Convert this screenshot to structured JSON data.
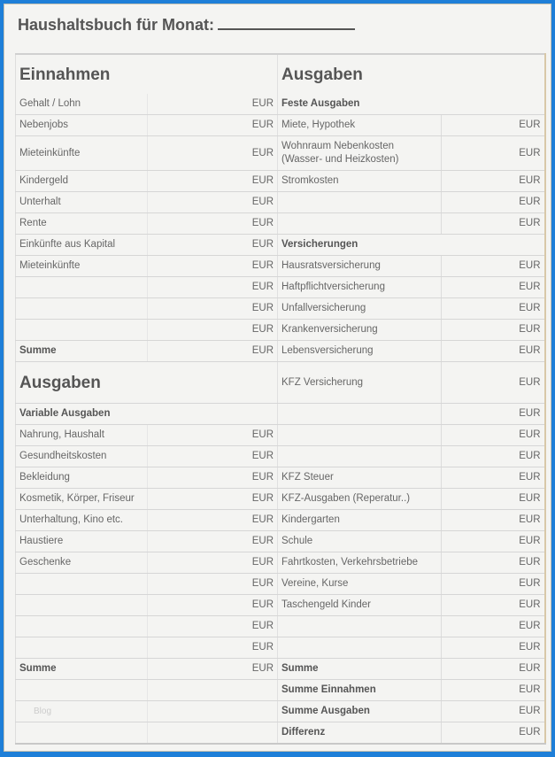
{
  "title": "Haushaltsbuch für Monat:",
  "currency": "EUR",
  "rows": [
    {
      "left": "Einnahmen",
      "left_style": "h",
      "left_eur": false,
      "right": "Ausgaben",
      "right_style": "h",
      "right_eur": false,
      "tall": 45,
      "heading": true
    },
    {
      "left": "Gehalt / Lohn",
      "left_eur": true,
      "right": "Feste Ausgaben",
      "right_style": "b",
      "right_eur": false,
      "right_span": true
    },
    {
      "left": "Nebenjobs",
      "left_eur": true,
      "right": "Miete, Hypothek",
      "right_eur": true
    },
    {
      "left": "Mieteinkünfte",
      "left_eur": true,
      "right": "Wohnraum Nebenkosten (Wasser- und Heizkosten)",
      "right_eur": true,
      "tall": 39
    },
    {
      "left": "Kindergeld",
      "left_eur": true,
      "right": "Stromkosten",
      "right_eur": true
    },
    {
      "left": "Unterhalt",
      "left_eur": true,
      "right": "",
      "right_eur": true
    },
    {
      "left": "Rente",
      "left_eur": true,
      "right": "",
      "right_eur": true
    },
    {
      "left": "Einkünfte aus Kapital",
      "left_eur": true,
      "right": "Versicherungen",
      "right_style": "b",
      "right_eur": false,
      "right_span": true
    },
    {
      "left": "Mieteinkünfte",
      "left_eur": true,
      "right": "Hausratsversicherung",
      "right_eur": true
    },
    {
      "left": "",
      "left_eur": true,
      "right": "Haftpflichtversicherung",
      "right_eur": true
    },
    {
      "left": "",
      "left_eur": true,
      "right": "Unfallversicherung",
      "right_eur": true
    },
    {
      "left": "",
      "left_eur": true,
      "right": "Krankenversicherung",
      "right_eur": true
    },
    {
      "left": "Summe",
      "left_style": "b",
      "left_eur": true,
      "right": "Lebensversicherung",
      "right_eur": true
    },
    {
      "left": "Ausgaben",
      "left_style": "h",
      "left_eur": false,
      "left_span": true,
      "right": "KFZ Versicherung",
      "right_eur": true,
      "tall": 47
    },
    {
      "left": "Variable Ausgaben",
      "left_style": "b",
      "left_eur": false,
      "left_span": true,
      "right": "",
      "right_eur": true
    },
    {
      "left": "Nahrung, Haushalt",
      "left_eur": true,
      "right": "",
      "right_eur": true
    },
    {
      "left": "Gesundheitskosten",
      "left_eur": true,
      "right": "",
      "right_eur": true
    },
    {
      "left": "Bekleidung",
      "left_eur": true,
      "right": "KFZ Steuer",
      "right_eur": true
    },
    {
      "left": "Kosmetik, Körper, Friseur",
      "left_eur": true,
      "right": "KFZ-Ausgaben (Reperatur..)",
      "right_eur": true
    },
    {
      "left": "Unterhaltung, Kino etc.",
      "left_eur": true,
      "right": "Kindergarten",
      "right_eur": true
    },
    {
      "left": "Haustiere",
      "left_eur": true,
      "right": "Schule",
      "right_eur": true
    },
    {
      "left": "Geschenke",
      "left_eur": true,
      "right": "Fahrtkosten, Verkehrsbetriebe",
      "right_eur": true
    },
    {
      "left": "",
      "left_eur": true,
      "right": "Vereine, Kurse",
      "right_eur": true
    },
    {
      "left": "",
      "left_eur": true,
      "right": "Taschengeld Kinder",
      "right_eur": true
    },
    {
      "left": "",
      "left_eur": true,
      "right": "",
      "right_eur": true
    },
    {
      "left": "",
      "left_eur": true,
      "right": "",
      "right_eur": true
    },
    {
      "left": "Summe",
      "left_style": "b",
      "left_eur": true,
      "right": "Summe",
      "right_style": "b",
      "right_eur": true
    },
    {
      "left": "",
      "left_eur": false,
      "right": "Summe Einnahmen",
      "right_style": "b",
      "right_eur": true
    },
    {
      "left": "Blog",
      "left_style": "wm",
      "left_eur": false,
      "right": "Summe Ausgaben",
      "right_style": "b",
      "right_eur": true
    },
    {
      "left": "",
      "left_eur": false,
      "right": "Differenz",
      "right_style": "b",
      "right_eur": true
    }
  ]
}
